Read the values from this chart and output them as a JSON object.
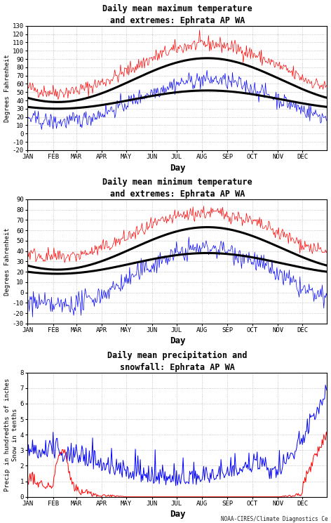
{
  "title1": "Daily mean maximum temperature\nand extremes: Ephrata AP WA",
  "title2": "Daily mean minimum temperature\nand extremes: Ephrata AP WA",
  "title3": "Daily mean precipitation and\nsnowfall: Ephrata AP WA",
  "ylabel1": "Degrees Fahrenheit",
  "ylabel2": "Degrees Fahrenheit",
  "ylabel3": "Precip in hundredths of inches\nSnow in tenths",
  "xlabel": "Day",
  "months": [
    "JAN",
    "FEB",
    "MAR",
    "APR",
    "MAY",
    "JUN",
    "JUL",
    "AUG",
    "SEP",
    "OCT",
    "NOV",
    "DEC"
  ],
  "credit": "NOAA-CIRES/Climate Diagnostics Ce",
  "plot1_ylim": [
    -20,
    130
  ],
  "plot1_yticks": [
    -20,
    -10,
    0,
    10,
    20,
    30,
    40,
    50,
    60,
    70,
    80,
    90,
    100,
    110,
    120,
    130
  ],
  "plot2_ylim": [
    -30,
    90
  ],
  "plot2_yticks": [
    -30,
    -20,
    -10,
    0,
    10,
    20,
    30,
    40,
    50,
    60,
    70,
    80,
    90
  ],
  "plot3_ylim": [
    0,
    8
  ],
  "plot3_yticks": [
    0,
    1,
    2,
    3,
    4,
    5,
    6,
    7,
    8
  ],
  "color_red": "#ff0000",
  "color_blue": "#0000ff",
  "color_black": "#000000",
  "background": "#ffffff",
  "grid_color": "#b0b0b0",
  "seed": 42,
  "month_starts": [
    1,
    32,
    60,
    91,
    121,
    152,
    182,
    213,
    244,
    274,
    305,
    335
  ]
}
